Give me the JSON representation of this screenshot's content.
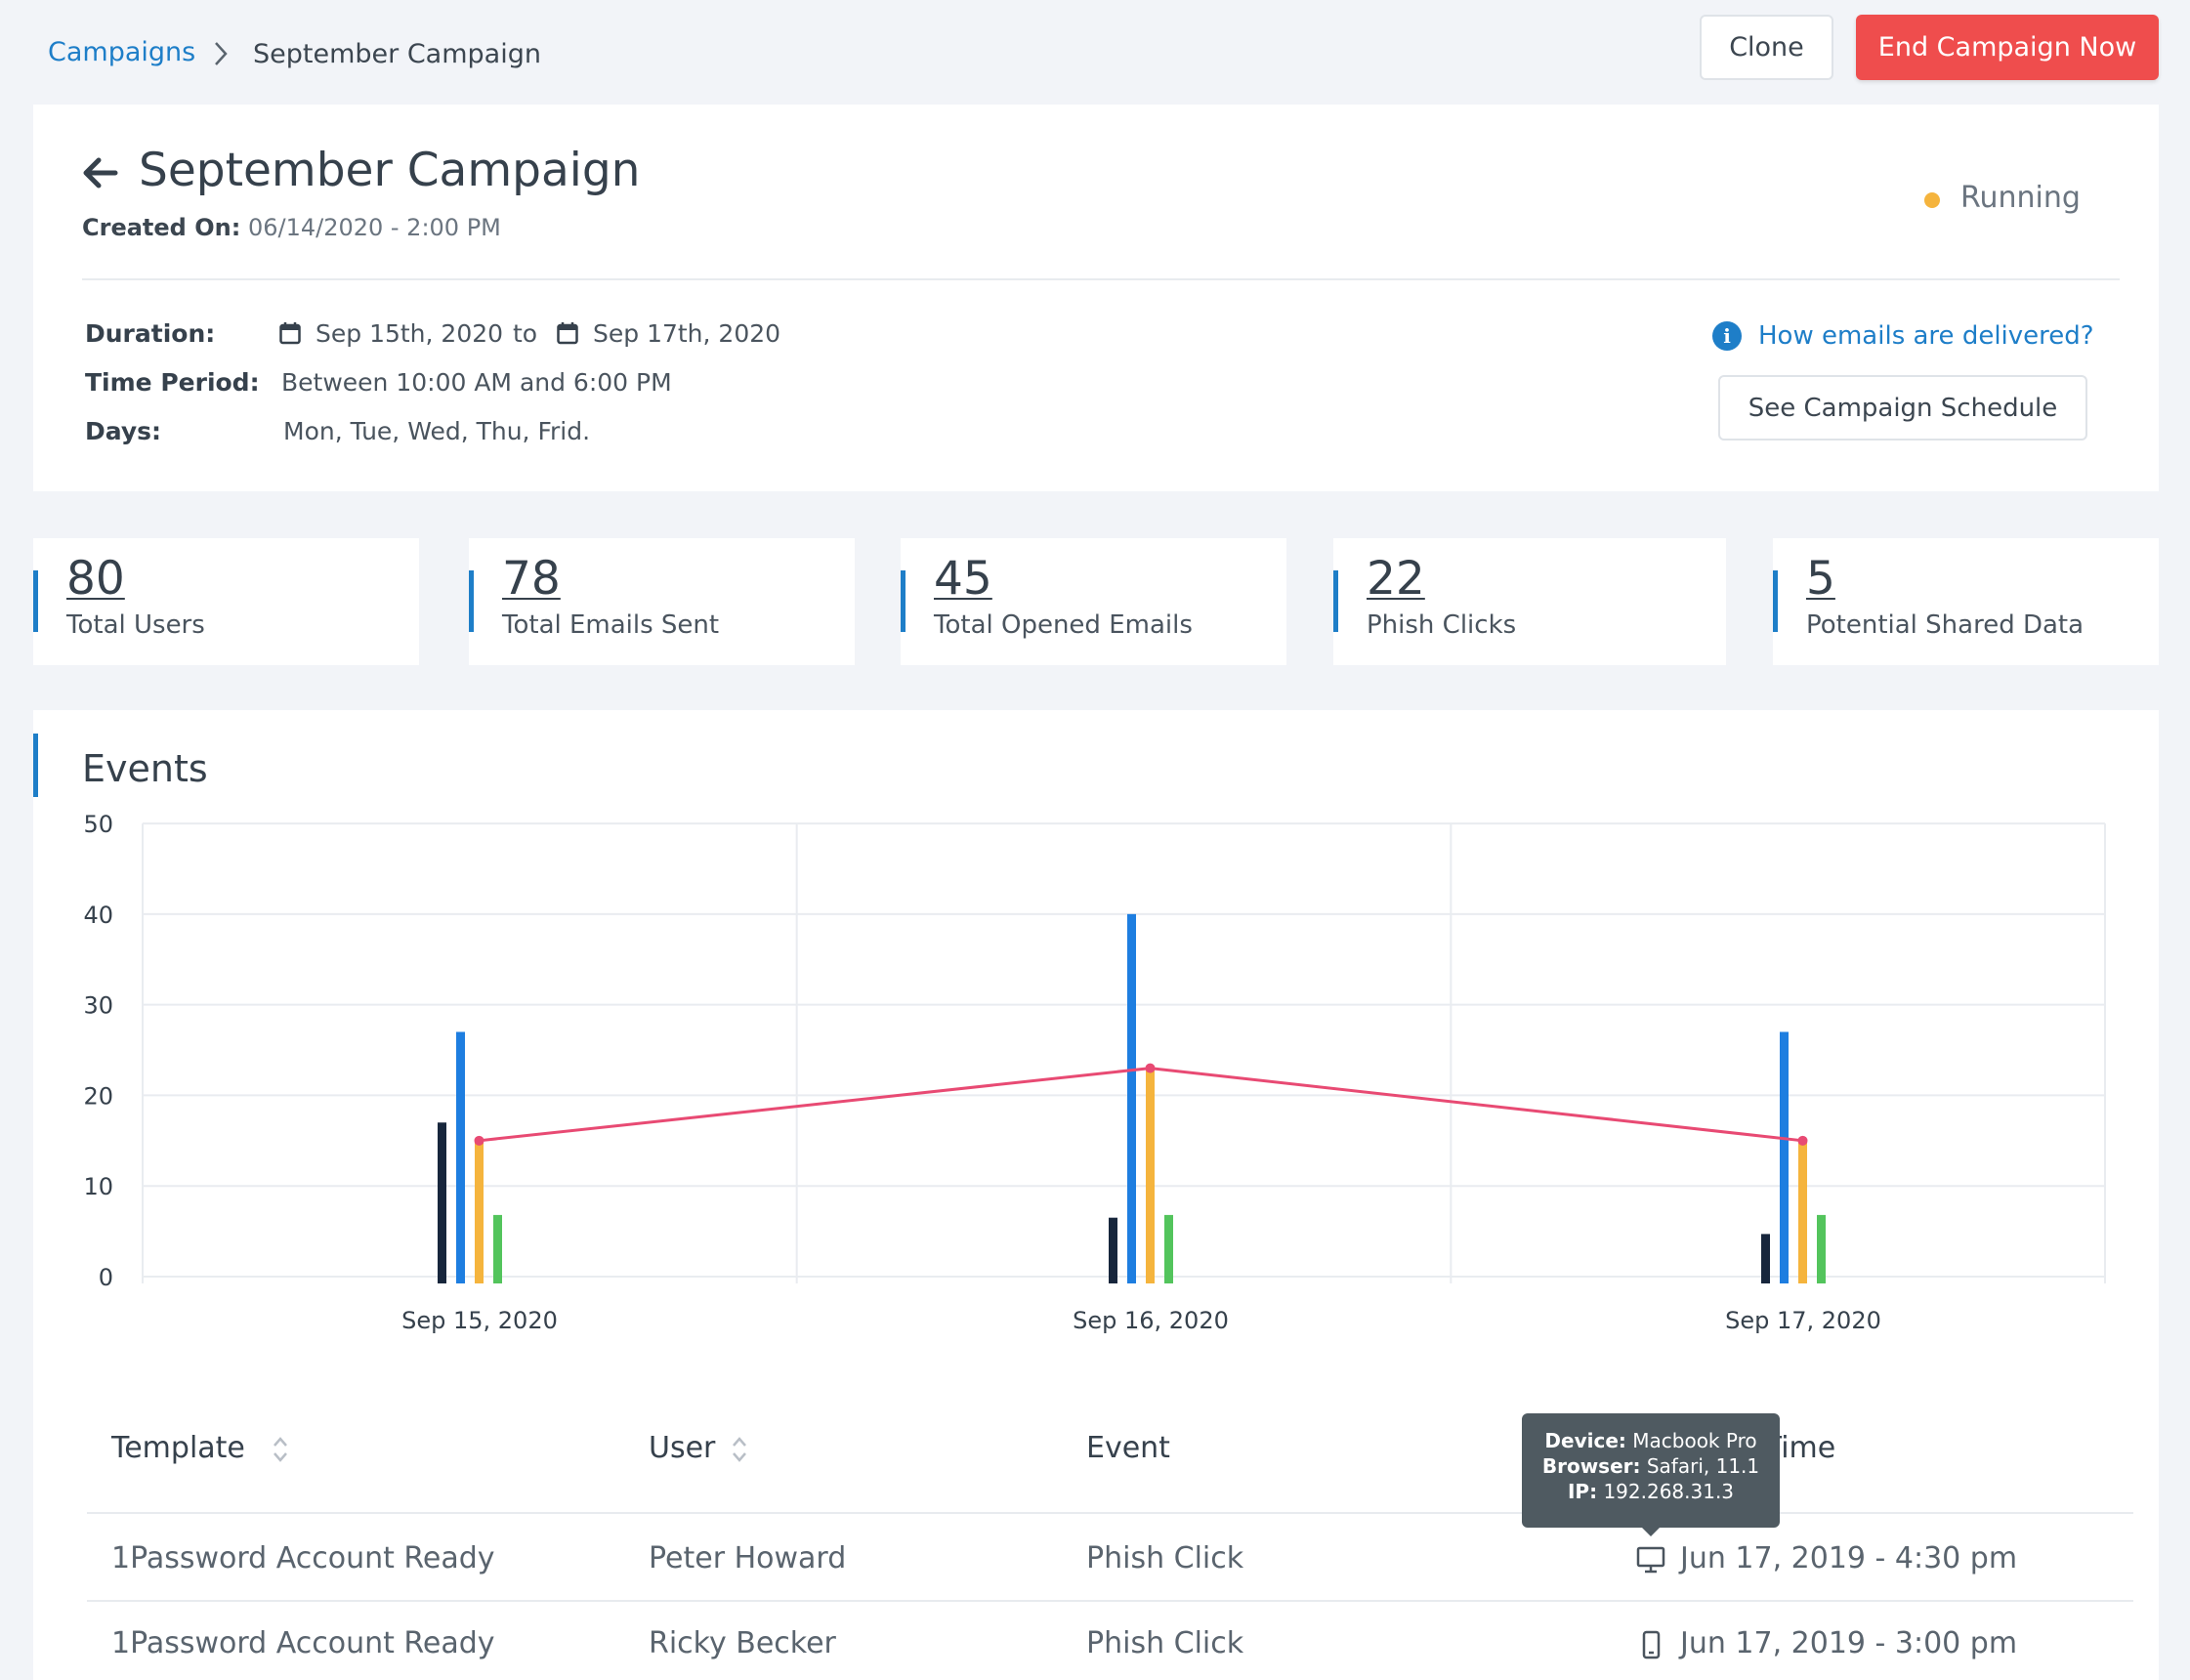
{
  "breadcrumb": {
    "parent": "Campaigns",
    "current": "September Campaign"
  },
  "actions": {
    "clone_label": "Clone",
    "end_label": "End Campaign Now"
  },
  "header": {
    "title": "September Campaign",
    "created_label": "Created On:",
    "created_value": "06/14/2020 - 2:00 PM",
    "status": "Running",
    "status_color": "#f5b43d"
  },
  "details": {
    "duration_label": "Duration:",
    "start_date": "Sep 15th, 2020",
    "to_label": "to",
    "end_date": "Sep 17th, 2020",
    "period_label": "Time Period:",
    "period_value": "Between 10:00 AM and 6:00 PM",
    "days_label": "Days:",
    "days_value": "Mon, Tue, Wed, Thu, Frid.",
    "info_link": "How emails are delivered?",
    "schedule_button": "See Campaign Schedule"
  },
  "stats": [
    {
      "value": "80",
      "label": "Total Users"
    },
    {
      "value": "78",
      "label": "Total Emails Sent"
    },
    {
      "value": "45",
      "label": "Total Opened Emails"
    },
    {
      "value": "22",
      "label": "Phish Clicks"
    },
    {
      "value": "5",
      "label": "Potential Shared Data"
    }
  ],
  "events": {
    "title": "Events"
  },
  "chart_data": {
    "type": "bar",
    "title": "",
    "xlabel": "",
    "ylabel": "",
    "ylim": [
      0,
      50
    ],
    "yticks": [
      0,
      10,
      20,
      30,
      40,
      50
    ],
    "grid": true,
    "categories": [
      "Sep 15, 2020",
      "Sep 16, 2020",
      "Sep 17, 2020"
    ],
    "series": [
      {
        "type": "bar",
        "color": "#17263c",
        "values": [
          17,
          6.5,
          4.7
        ]
      },
      {
        "type": "bar",
        "color": "#1e7ee0",
        "values": [
          27,
          40,
          27
        ]
      },
      {
        "type": "bar",
        "color": "#f5b43d",
        "values": [
          15,
          23,
          15
        ]
      },
      {
        "type": "bar",
        "color": "#53c45c",
        "values": [
          6.8,
          6.8,
          6.8
        ]
      },
      {
        "type": "line",
        "color": "#e84a73",
        "values": [
          15,
          23,
          15
        ]
      }
    ]
  },
  "table": {
    "columns": [
      "Template",
      "User",
      "Event",
      "Date/Time"
    ],
    "rows": [
      {
        "template": "1Password Account Ready",
        "user": "Peter Howard",
        "event": "Phish Click",
        "device": "desktop-icon",
        "datetime": "Jun 17, 2019 - 4:30 pm"
      },
      {
        "template": "1Password Account Ready",
        "user": "Ricky Becker",
        "event": "Phish Click",
        "device": "mobile-icon",
        "datetime": "Jun 17, 2019 - 3:00 pm"
      }
    ]
  },
  "tooltip": {
    "device_label": "Device:",
    "device_value": "Macbook Pro",
    "browser_label": "Browser:",
    "browser_value": "Safari, 11.1",
    "ip_label": "IP:",
    "ip_value": "192.268.31.3"
  }
}
